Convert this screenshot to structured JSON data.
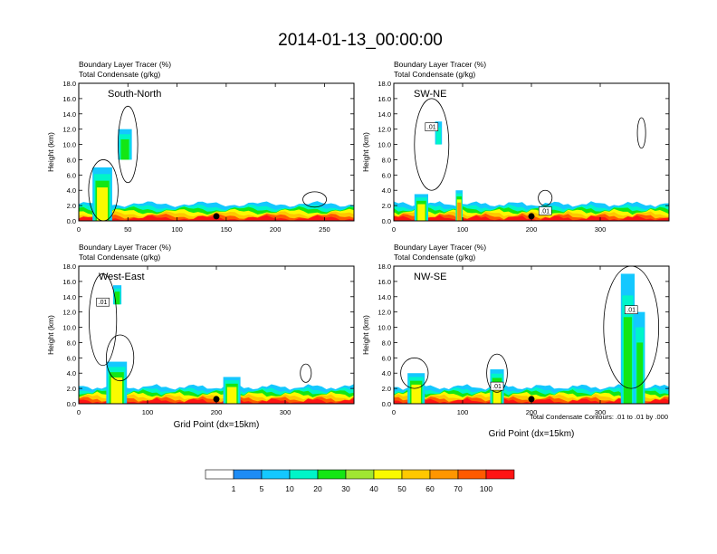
{
  "title": "2014-01-13_00:00:00",
  "colorbar": {
    "labels": [
      "1",
      "5",
      "10",
      "20",
      "30",
      "40",
      "50",
      "60",
      "70",
      "100"
    ],
    "colors": [
      "#ffffff",
      "#1e8cf5",
      "#14c8ff",
      "#00f5c8",
      "#14e614",
      "#a0e632",
      "#fafa00",
      "#ffc800",
      "#ff9600",
      "#ff5a00",
      "#ff1414"
    ]
  },
  "contour_note": "Total Condensate Contours: .01 to .01 by .000",
  "chart_data": [
    {
      "type": "heatmap",
      "label": "South-North",
      "header": [
        "Boundary Layer Tracer   (%)",
        "Total Condensate   (g/kg)"
      ],
      "ylabel": "Height (km)",
      "xlabel": "",
      "xlim": [
        0,
        280
      ],
      "ylim": [
        0,
        18
      ],
      "xticks": [
        "0",
        "50",
        "100",
        "150",
        "200",
        "250"
      ],
      "yticks": [
        "0.0",
        "2.0",
        "4.0",
        "6.0",
        "8.0",
        "10.0",
        "12.0",
        "14.0",
        "16.0",
        "18.0"
      ],
      "contour_labels": [],
      "marker_x": 140
    },
    {
      "type": "heatmap",
      "label": "SW-NE",
      "header": [
        "Boundary Layer Tracer   (%)",
        "Total Condensate   (g/kg)"
      ],
      "ylabel": "Height (km)",
      "xlabel": "",
      "xlim": [
        0,
        400
      ],
      "ylim": [
        0,
        18
      ],
      "xticks": [
        "0",
        "100",
        "200",
        "300"
      ],
      "yticks": [
        "0.0",
        "2.0",
        "4.0",
        "6.0",
        "8.0",
        "10.0",
        "12.0",
        "14.0",
        "16.0",
        "18.0"
      ],
      "contour_labels": [
        ".01",
        ".01"
      ],
      "marker_x": 200
    },
    {
      "type": "heatmap",
      "label": "West-East",
      "header": [
        "Boundary Layer Tracer   (%)",
        "Total Condensate   (g/kg)"
      ],
      "ylabel": "Height (km)",
      "xlabel": "Grid Point (dx=15km)",
      "xlim": [
        0,
        400
      ],
      "ylim": [
        0,
        18
      ],
      "xticks": [
        "0",
        "100",
        "200",
        "300"
      ],
      "yticks": [
        "0.0",
        "2.0",
        "4.0",
        "6.0",
        "8.0",
        "10.0",
        "12.0",
        "14.0",
        "16.0",
        "18.0"
      ],
      "contour_labels": [
        ".01"
      ],
      "marker_x": 200
    },
    {
      "type": "heatmap",
      "label": "NW-SE",
      "header": [
        "Boundary Layer Tracer   (%)",
        "Total Condensate   (g/kg)"
      ],
      "ylabel": "Height (km)",
      "xlabel": "Grid Point (dx=15km)",
      "xlim": [
        0,
        400
      ],
      "ylim": [
        0,
        18
      ],
      "xticks": [
        "0",
        "100",
        "200",
        "300"
      ],
      "yticks": [
        "0.0",
        "2.0",
        "4.0",
        "6.0",
        "8.0",
        "10.0",
        "12.0",
        "14.0",
        "16.0",
        "18.0"
      ],
      "contour_labels": [
        ".01",
        ".01"
      ],
      "marker_x": 200
    }
  ]
}
